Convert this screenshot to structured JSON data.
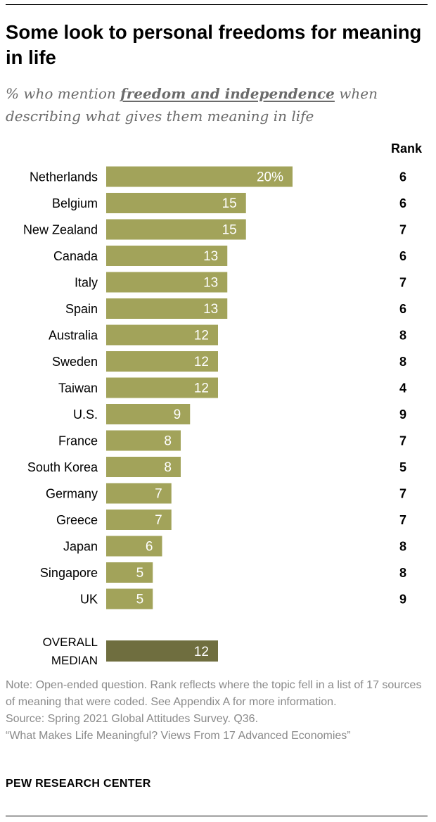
{
  "title": "Some look to personal freedoms for meaning in life",
  "subtitle": {
    "before": "% who mention ",
    "highlight": "freedom and independence",
    "after": " when describing what gives them meaning in life"
  },
  "rank_header": "Rank",
  "colors": {
    "bar": "#a2a35a",
    "median_bar": "#6f6e3f",
    "value_text": "#ffffff"
  },
  "chart_data": {
    "type": "bar",
    "orientation": "horizontal",
    "categories": [
      "Netherlands",
      "Belgium",
      "New Zealand",
      "Canada",
      "Italy",
      "Spain",
      "Australia",
      "Sweden",
      "Taiwan",
      "U.S.",
      "France",
      "South Korea",
      "Germany",
      "Greece",
      "Japan",
      "Singapore",
      "UK"
    ],
    "values": [
      20,
      15,
      15,
      13,
      13,
      13,
      12,
      12,
      12,
      9,
      8,
      8,
      7,
      7,
      6,
      5,
      5
    ],
    "value_labels": [
      "20%",
      "15",
      "15",
      "13",
      "13",
      "13",
      "12",
      "12",
      "12",
      "9",
      "8",
      "8",
      "7",
      "7",
      "6",
      "5",
      "5"
    ],
    "ranks": [
      "6",
      "6",
      "7",
      "6",
      "7",
      "6",
      "8",
      "8",
      "4",
      "9",
      "7",
      "5",
      "7",
      "7",
      "8",
      "8",
      "9"
    ],
    "median": {
      "label_lines": [
        "OVERALL",
        "MEDIAN"
      ],
      "value": 12,
      "value_label": "12"
    },
    "xlim": [
      0,
      20
    ],
    "grid": false,
    "legend": "none"
  },
  "notes": {
    "note": "Note: Open-ended question. Rank reflects where the topic fell in a list of 17 sources of meaning that were coded. See Appendix A for more information.",
    "source": "Source: Spring 2021 Global Attitudes Survey. Q36.",
    "report": "“What Makes Life Meaningful? Views From 17 Advanced Economies”"
  },
  "brand": "PEW RESEARCH CENTER"
}
